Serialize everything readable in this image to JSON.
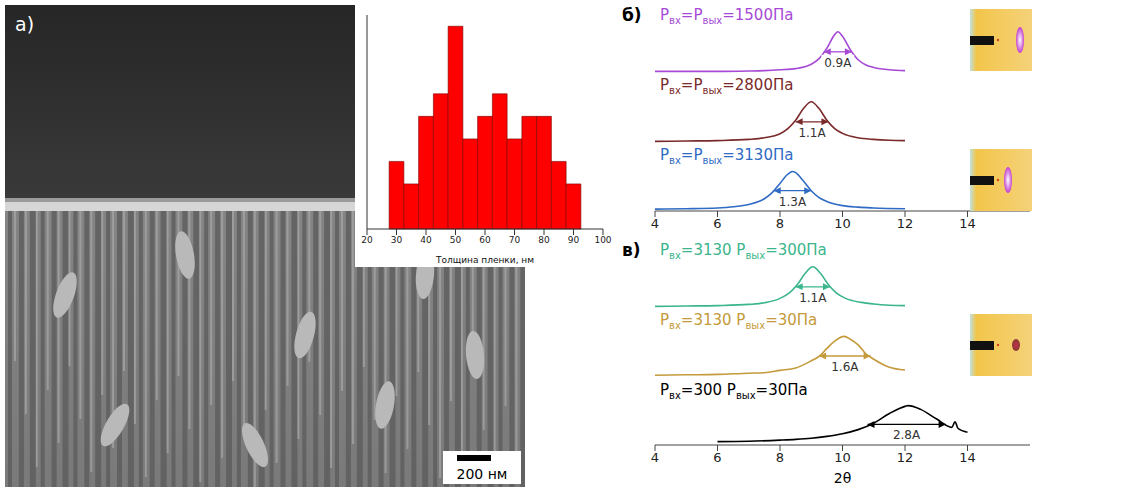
{
  "image": {
    "label": "а)",
    "scale_bar": "200 нм"
  },
  "chart_data": [
    {
      "type": "histogram",
      "xlabel": "Толщина пленки, нм",
      "bins": [
        27.5,
        32.5,
        37.5,
        42.5,
        47.5,
        52.5,
        57.5,
        62.5,
        67.5,
        72.5,
        77.5,
        82.5,
        87.5,
        92.5
      ],
      "counts": [
        3,
        2,
        5,
        6,
        9,
        4,
        5,
        6,
        4,
        5,
        5,
        3,
        2
      ],
      "xlim": [
        20,
        100
      ],
      "xticks": [
        20,
        30,
        40,
        50,
        60,
        70,
        80,
        90,
        100
      ],
      "ylim": [
        0,
        9.5
      ],
      "color": "#ff0000",
      "tick_labels": "x"
    },
    {
      "type": "line",
      "panel": "б)",
      "xlim": [
        4,
        16
      ],
      "xticks": [
        4,
        6,
        8,
        10,
        12,
        14
      ],
      "ylim": [
        0,
        1.2
      ],
      "tick_labels": "x",
      "series": [
        {
          "label": [
            "P",
            "вх",
            "=P",
            "вых",
            "=1500Па"
          ],
          "color": "#a64ad6",
          "x": [
            4,
            5,
            6,
            7,
            7.5,
            8,
            8.5,
            9,
            9.25,
            9.5,
            9.75,
            9.85,
            10,
            10.25,
            10.5,
            10.75,
            11,
            11.5,
            12
          ],
          "values": [
            0.04,
            0.04,
            0.04,
            0.05,
            0.06,
            0.08,
            0.11,
            0.22,
            0.36,
            0.62,
            0.96,
            1.03,
            0.92,
            0.58,
            0.33,
            0.2,
            0.14,
            0.08,
            0.06
          ],
          "annotation": {
            "text": "0.9A",
            "x": [
              9.4,
              10.3
            ],
            "y": 0.53
          }
        },
        {
          "label": [
            "P",
            "вх",
            "=P",
            "вых",
            "=2800Па"
          ],
          "color": "#7a2a2a",
          "x": [
            4,
            5,
            6,
            7,
            7.5,
            8,
            8.25,
            8.5,
            8.75,
            9,
            9.25,
            9.5,
            9.75,
            10,
            10.5,
            11,
            11.5,
            12
          ],
          "values": [
            0.04,
            0.05,
            0.06,
            0.09,
            0.13,
            0.23,
            0.36,
            0.57,
            0.86,
            1.03,
            0.86,
            0.57,
            0.36,
            0.24,
            0.13,
            0.09,
            0.07,
            0.06
          ],
          "annotation": {
            "text": "1.1A",
            "x": [
              8.5,
              9.55
            ],
            "y": 0.53
          }
        },
        {
          "label": [
            "P",
            "вх",
            "=P",
            "вых",
            "=3130Па"
          ],
          "color": "#2f6bc4",
          "x": [
            4,
            5,
            6,
            6.5,
            7,
            7.5,
            7.75,
            8,
            8.25,
            8.4,
            8.5,
            8.75,
            9,
            9.25,
            9.5,
            10,
            10.5,
            11,
            12
          ],
          "values": [
            0.05,
            0.06,
            0.08,
            0.11,
            0.17,
            0.32,
            0.48,
            0.72,
            0.96,
            1.03,
            1.0,
            0.78,
            0.53,
            0.35,
            0.25,
            0.14,
            0.1,
            0.08,
            0.06
          ],
          "annotation": {
            "text": "1.3A",
            "x": [
              7.8,
              9.0
            ],
            "y": 0.53
          }
        }
      ]
    },
    {
      "type": "line",
      "panel": "в)",
      "xlabel": "2θ",
      "xlim": [
        4,
        16
      ],
      "xticks": [
        4,
        6,
        8,
        10,
        12,
        14
      ],
      "ylim": [
        0,
        1.2
      ],
      "tick_labels": "x",
      "series": [
        {
          "label": [
            "P",
            "вх",
            "=3130 P",
            "вых",
            "=300Па"
          ],
          "color": "#3ab58c",
          "x": [
            4,
            5,
            6,
            7,
            7.5,
            8,
            8.3,
            8.55,
            8.8,
            9.05,
            9.3,
            9.55,
            9.8,
            10.1,
            10.6,
            11,
            11.5,
            12
          ],
          "values": [
            0.04,
            0.05,
            0.06,
            0.09,
            0.13,
            0.24,
            0.38,
            0.58,
            0.86,
            1.03,
            0.86,
            0.58,
            0.38,
            0.24,
            0.14,
            0.1,
            0.07,
            0.06
          ],
          "annotation": {
            "text": "1.1A",
            "x": [
              8.5,
              9.6
            ],
            "y": 0.53
          }
        },
        {
          "label": [
            "P",
            "вх",
            "=3130 P",
            "вых",
            "=30Па"
          ],
          "color": "#c49a3a",
          "x": [
            4,
            5,
            6,
            7,
            7.5,
            8,
            8.5,
            9,
            9.25,
            9.5,
            9.75,
            10.05,
            10.25,
            10.5,
            10.75,
            11,
            11.5,
            12
          ],
          "values": [
            0.07,
            0.08,
            0.09,
            0.12,
            0.13,
            0.19,
            0.25,
            0.43,
            0.54,
            0.74,
            0.92,
            1.04,
            0.97,
            0.83,
            0.6,
            0.47,
            0.27,
            0.2
          ],
          "annotation": {
            "text": "1.6A",
            "x": [
              9.25,
              10.9
            ],
            "y": 0.55
          }
        },
        {
          "label": [
            "P",
            "вх",
            "=300 P",
            "вых",
            "=30Па"
          ],
          "color": "#000000",
          "x": [
            6,
            7,
            8,
            8.5,
            9,
            9.5,
            10,
            10.5,
            11,
            11.5,
            12,
            12.1,
            12.5,
            13,
            13.5,
            13.6,
            13.7,
            14
          ],
          "values": [
            0.09,
            0.1,
            0.13,
            0.15,
            0.18,
            0.23,
            0.3,
            0.41,
            0.58,
            0.84,
            1.03,
            1.05,
            0.95,
            0.7,
            0.47,
            0.62,
            0.44,
            0.34
          ],
          "annotation": {
            "text": "2.8A",
            "x": [
              10.8,
              13.3
            ],
            "y": 0.55
          }
        }
      ]
    }
  ]
}
